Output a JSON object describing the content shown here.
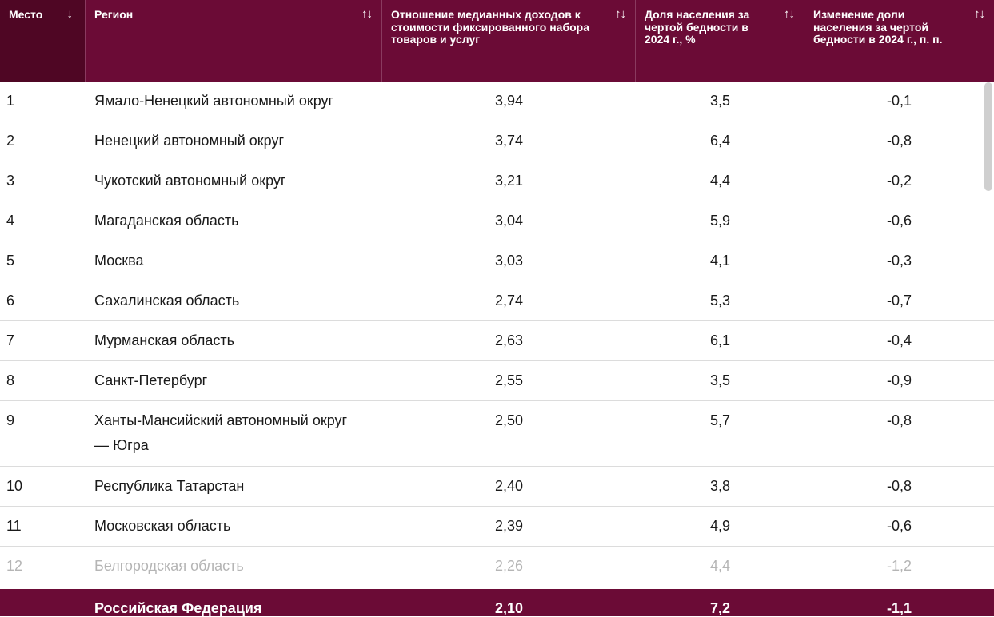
{
  "colors": {
    "header_bg": "#6b0b36",
    "sorted_header_bg": "#4f0624",
    "footer_bg": "#6b0b36"
  },
  "header": {
    "columns": [
      {
        "label": "Место",
        "sort_icon": "↓"
      },
      {
        "label": "Регион",
        "sort_icon": "↑↓"
      },
      {
        "label": "Отношение медианных доходов к стоимости фиксированного набора товаров и услуг",
        "sort_icon": "↑↓"
      },
      {
        "label": "Доля населения за чертой бедности в 2024 г., %",
        "sort_icon": "↑↓"
      },
      {
        "label": "Изменение доли населения за чертой бедности в 2024 г., п. п.",
        "sort_icon": "↑↓"
      }
    ]
  },
  "rows": [
    {
      "rank": "1",
      "region": "Ямало-Ненецкий автономный округ",
      "ratio": "3,94",
      "poverty": "3,5",
      "change": "-0,1"
    },
    {
      "rank": "2",
      "region": "Ненецкий автономный округ",
      "ratio": "3,74",
      "poverty": "6,4",
      "change": "-0,8"
    },
    {
      "rank": "3",
      "region": "Чукотский автономный округ",
      "ratio": "3,21",
      "poverty": "4,4",
      "change": "-0,2"
    },
    {
      "rank": "4",
      "region": "Магаданская область",
      "ratio": "3,04",
      "poverty": "5,9",
      "change": "-0,6"
    },
    {
      "rank": "5",
      "region": "Москва",
      "ratio": "3,03",
      "poverty": "4,1",
      "change": "-0,3"
    },
    {
      "rank": "6",
      "region": "Сахалинская область",
      "ratio": "2,74",
      "poverty": "5,3",
      "change": "-0,7"
    },
    {
      "rank": "7",
      "region": "Мурманская область",
      "ratio": "2,63",
      "poverty": "6,1",
      "change": "-0,4"
    },
    {
      "rank": "8",
      "region": "Санкт-Петербург",
      "ratio": "2,55",
      "poverty": "3,5",
      "change": "-0,9"
    },
    {
      "rank": "9",
      "region": "Ханты-Мансийский автономный округ — Югра",
      "ratio": "2,50",
      "poverty": "5,7",
      "change": "-0,8"
    },
    {
      "rank": "10",
      "region": "Республика Татарстан",
      "ratio": "2,40",
      "poverty": "3,8",
      "change": "-0,8"
    },
    {
      "rank": "11",
      "region": "Московская область",
      "ratio": "2,39",
      "poverty": "4,9",
      "change": "-0,6"
    },
    {
      "rank": "12",
      "region": "Белгородская область",
      "ratio": "2,26",
      "poverty": "4,4",
      "change": "-1,2"
    }
  ],
  "footer": {
    "region": "Российская Федерация",
    "ratio": "2,10",
    "poverty": "7,2",
    "change": "-1,1"
  }
}
